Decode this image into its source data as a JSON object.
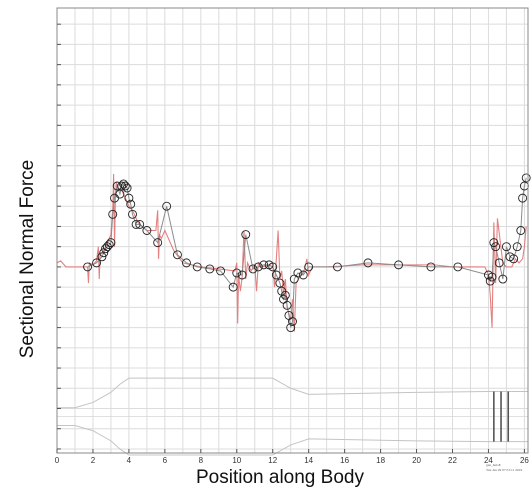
{
  "chart_data": {
    "type": "line",
    "title": "",
    "xlabel": "Position along Body",
    "ylabel": "Sectional Normal Force",
    "xlim": [
      0,
      26.2
    ],
    "ylim": [
      -4.6,
      6.4
    ],
    "x_ticks": [
      0,
      2,
      4,
      6,
      8,
      10,
      12,
      14,
      16,
      18,
      20,
      22,
      24,
      26
    ],
    "x_tick_labels": [
      "0",
      "2",
      "4",
      "6",
      "8",
      "10",
      "12",
      "14",
      "16",
      "18",
      "20",
      "22",
      "24",
      "26"
    ],
    "y_tick_labels_visible": false,
    "grid": true,
    "legend": "none",
    "series": [
      {
        "style": "gray line with open circle markers",
        "color": "#8c8c8c",
        "marker": "open-circle",
        "x": [
          1.7,
          2.2,
          2.5,
          2.6,
          2.7,
          2.8,
          2.9,
          3.0,
          3.1,
          3.2,
          3.35,
          3.5,
          3.6,
          3.7,
          3.8,
          3.9,
          4.0,
          4.1,
          4.2,
          4.4,
          4.6,
          5.0,
          5.6,
          6.1,
          6.7,
          7.2,
          7.8,
          8.5,
          9.1,
          9.8,
          10.0,
          10.3,
          10.5,
          10.9,
          11.2,
          11.5,
          11.8,
          12.0,
          12.2,
          12.4,
          12.5,
          12.6,
          12.7,
          12.8,
          12.9,
          13.0,
          13.1,
          13.2,
          13.4,
          13.7,
          14.0,
          15.6,
          17.3,
          19.0,
          20.8,
          22.3,
          24.0,
          24.1,
          24.2,
          24.3,
          24.4,
          24.6,
          24.8,
          25.0,
          25.2,
          25.4,
          25.6,
          25.8,
          25.9,
          26.0,
          26.1
        ],
        "y": [
          0.0,
          0.1,
          0.25,
          0.35,
          0.45,
          0.5,
          0.55,
          0.6,
          1.3,
          1.7,
          2.0,
          1.8,
          2.0,
          2.05,
          2.0,
          1.95,
          1.7,
          1.55,
          1.3,
          1.05,
          1.05,
          0.9,
          0.6,
          1.5,
          0.3,
          0.1,
          0.0,
          -0.05,
          -0.1,
          -0.5,
          -0.15,
          -0.2,
          0.8,
          -0.05,
          0.0,
          0.05,
          0.05,
          0.0,
          -0.2,
          -0.4,
          -0.6,
          -0.8,
          -0.7,
          -0.95,
          -1.2,
          -1.5,
          -1.35,
          -0.3,
          -0.15,
          -0.2,
          0.0,
          0.0,
          0.1,
          0.05,
          0.0,
          0.0,
          -0.2,
          -0.35,
          -0.25,
          0.6,
          0.5,
          0.1,
          -0.3,
          0.5,
          0.25,
          0.2,
          0.5,
          0.9,
          1.7,
          2.0,
          2.2
        ]
      },
      {
        "style": "red jagged detail line",
        "color": "#e06b6b",
        "marker": "none",
        "x": [
          0,
          0.2,
          0.5,
          1.0,
          1.5,
          1.7,
          1.75,
          1.8,
          2.0,
          2.2,
          2.3,
          2.35,
          2.4,
          2.6,
          2.8,
          3.0,
          3.1,
          3.15,
          3.2,
          3.25,
          3.3,
          3.4,
          3.6,
          3.8,
          4.0,
          4.2,
          4.5,
          5.0,
          5.5,
          5.6,
          5.65,
          5.7,
          5.8,
          6.0,
          6.5,
          7.0,
          8.0,
          9.0,
          9.9,
          10.0,
          10.05,
          10.1,
          10.2,
          10.3,
          10.4,
          10.5,
          10.6,
          10.8,
          11.0,
          11.1,
          11.2,
          11.4,
          11.8,
          12.0,
          12.1,
          12.2,
          12.3,
          12.4,
          12.5,
          12.6,
          12.7,
          12.8,
          13.0,
          13.1,
          13.2,
          13.3,
          13.5,
          13.7,
          13.8,
          13.9,
          14.0,
          14.2,
          15.0,
          17.0,
          19.0,
          21.0,
          22.0,
          23.0,
          23.8,
          24.0,
          24.1,
          24.2,
          24.3,
          24.4,
          24.5,
          24.8,
          25.0,
          25.3,
          25.5,
          25.7,
          25.9,
          26.0,
          26.1
        ],
        "y": [
          0.1,
          0.15,
          0.0,
          0.0,
          0.0,
          0.0,
          -0.4,
          0.1,
          0.05,
          0.15,
          0.5,
          -0.3,
          0.3,
          0.4,
          0.6,
          0.8,
          1.4,
          2.3,
          0.5,
          1.7,
          2.1,
          1.9,
          1.9,
          1.7,
          1.5,
          1.4,
          1.1,
          0.9,
          0.9,
          1.4,
          0.2,
          0.8,
          0.7,
          0.9,
          0.4,
          0.1,
          0.0,
          -0.05,
          -0.1,
          0.1,
          -1.4,
          -0.2,
          -0.6,
          -0.25,
          0.9,
          -0.3,
          0.1,
          -0.1,
          0.05,
          -0.6,
          0.1,
          0.0,
          0.05,
          0.1,
          -0.5,
          0.2,
          0.9,
          -0.3,
          -0.1,
          -0.7,
          -0.3,
          -1.0,
          -1.3,
          -0.8,
          -1.6,
          -0.4,
          -0.25,
          -0.15,
          0.0,
          0.2,
          -0.2,
          0.0,
          0.0,
          0.05,
          0.05,
          0.05,
          0.0,
          0.0,
          0.0,
          -0.2,
          -0.7,
          -1.5,
          1.1,
          -0.4,
          1.2,
          0.1,
          0.0,
          0.0,
          0.2,
          0.1,
          0.2,
          0.5,
          1.0
        ]
      }
    ],
    "body_profile": {
      "description": "light gray outline of the body shape drawn at the bottom of the plot",
      "x": [
        0,
        1.0,
        2.0,
        3.0,
        3.5,
        4.0,
        9.0,
        10.0,
        11.0,
        12.0,
        13.0,
        14.0,
        20.0,
        24.0,
        25.5,
        26.2
      ],
      "half_height": [
        0.22,
        0.22,
        0.35,
        0.6,
        0.8,
        0.95,
        0.95,
        0.95,
        0.95,
        0.95,
        0.7,
        0.55,
        0.6,
        0.62,
        0.62,
        0.62
      ]
    }
  },
  "stamp_lines": [
    "gen_haGE",
    "Tue Jan 29 07:51:11 2019"
  ]
}
